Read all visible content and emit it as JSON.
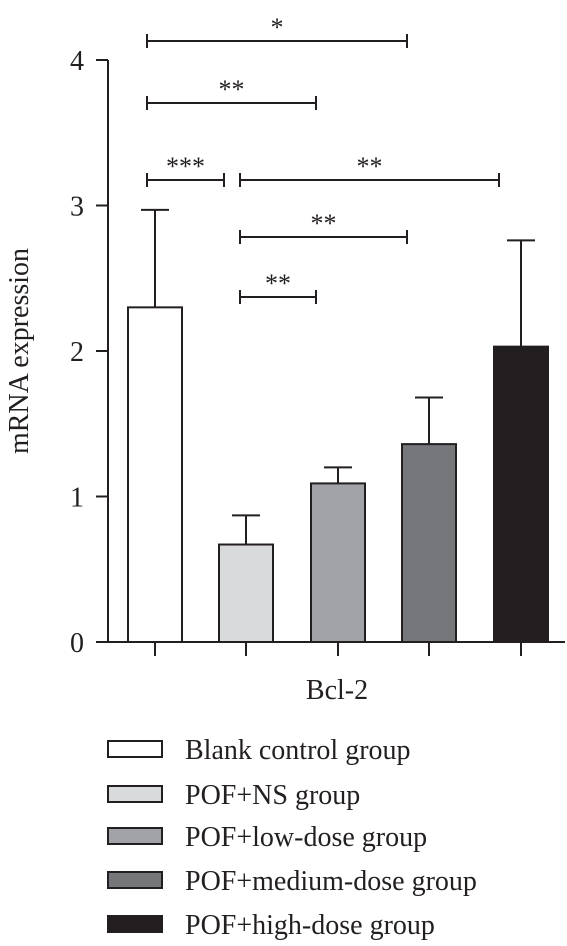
{
  "chart_data": {
    "type": "bar",
    "ylabel": "mRNA expression",
    "xlabel": "Bcl-2",
    "ylim": [
      0,
      4
    ],
    "yticks": [
      0,
      1,
      2,
      3,
      4
    ],
    "grid": false,
    "legend_position": "bottom",
    "series": [
      {
        "name": "Blank control group",
        "value": 2.3,
        "error": 0.67,
        "color": "#ffffff"
      },
      {
        "name": "POF+NS group",
        "value": 0.67,
        "error": 0.2,
        "color": "#d9dadc"
      },
      {
        "name": "POF+low-dose group",
        "value": 1.09,
        "error": 0.11,
        "color": "#a2a3a7"
      },
      {
        "name": "POF+medium-dose group",
        "value": 1.36,
        "error": 0.32,
        "color": "#75777a"
      },
      {
        "name": "POF+high-dose group",
        "value": 2.03,
        "error": 0.73,
        "color": "#231f20"
      }
    ],
    "significance": [
      {
        "from": 0,
        "to": 3,
        "label": "*"
      },
      {
        "from": 0,
        "to": 2,
        "label": "**"
      },
      {
        "from": 0,
        "to": 1,
        "label": "***"
      },
      {
        "from": 1,
        "to": 4,
        "label": "**"
      },
      {
        "from": 1,
        "to": 3,
        "label": "**"
      },
      {
        "from": 1,
        "to": 2,
        "label": "**"
      }
    ]
  }
}
